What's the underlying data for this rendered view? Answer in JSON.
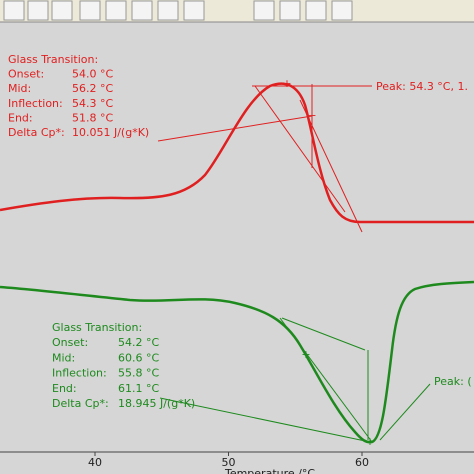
{
  "toolbar": {
    "buttons": 12
  },
  "red_annotation": {
    "title": "Glass Transition:",
    "rows": [
      [
        "Onset:",
        "54.0 °C"
      ],
      [
        "Mid:",
        "56.2 °C"
      ],
      [
        "Inflection:",
        "54.3 °C"
      ],
      [
        "End:",
        "51.8 °C"
      ],
      [
        "Delta Cp*:",
        "10.051 J/(g*K)"
      ]
    ],
    "peak": "Peak: 54.3 °C, 1."
  },
  "green_annotation": {
    "title": "Glass Transition:",
    "rows": [
      [
        "Onset:",
        "54.2 °C"
      ],
      [
        "Mid:",
        "60.6 °C"
      ],
      [
        "Inflection:",
        "55.8 °C"
      ],
      [
        "End:",
        "61.1 °C"
      ],
      [
        "Delta Cp*:",
        "18.945 J/(g*K)"
      ]
    ],
    "peak": "Peak: ("
  },
  "x_axis": {
    "ticks": [
      40,
      50,
      60
    ],
    "title": "Temperature /°C"
  }
}
